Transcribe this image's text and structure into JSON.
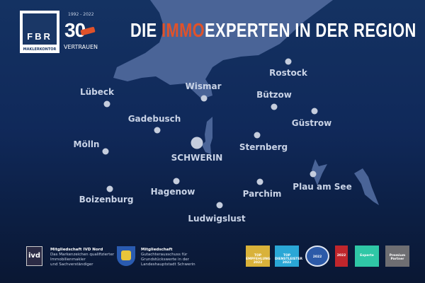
{
  "logo": {
    "letters": "FBR",
    "subtitle": "MAKLERKONTOR",
    "years": "1992 - 2022",
    "anniversary": "30",
    "anniversary_badge": "Jahre",
    "tagline": "VERTRAUEN"
  },
  "headline": {
    "part1": "DIE ",
    "highlight": "IMMO",
    "part2": "EXPERTEN IN DER REGION",
    "highlight_color": "#e0522a"
  },
  "cities": [
    {
      "name": "Rostock"
    },
    {
      "name": "Wismar"
    },
    {
      "name": "Lübeck"
    },
    {
      "name": "Bützow"
    },
    {
      "name": "Güstrow"
    },
    {
      "name": "Gadebusch"
    },
    {
      "name": "Sternberg"
    },
    {
      "name": "Mölln"
    },
    {
      "name": "SCHWERIN"
    },
    {
      "name": "Hagenow"
    },
    {
      "name": "Parchim"
    },
    {
      "name": "Plau am See"
    },
    {
      "name": "Boizenburg"
    },
    {
      "name": "Ludwigslust"
    }
  ],
  "footer": {
    "ivd": {
      "logo": "ivd",
      "title": "Mitgliedschaft IVD Nord",
      "lines": [
        "Das Markenzeichen qualifizierter",
        "Immobilienmakler",
        "und Sachverständiger"
      ]
    },
    "schwerin": {
      "title": "Mitgliedschaft",
      "lines": [
        "Gutachterausschuss für",
        "Grundstückswerte in der",
        "Landeshauptstadt Schwerin"
      ]
    },
    "awards": [
      {
        "label": "TOP EMPFEHLUNG 2022",
        "color": "#d9b23a"
      },
      {
        "label": "TOP DIENSTLEISTER 2022",
        "color": "#2aa7d6"
      },
      {
        "label": "2022",
        "color": "#2c5aa8"
      },
      {
        "label": "2022",
        "color": "#c0262c"
      },
      {
        "label": "Experte",
        "color": "#2fc7a6"
      },
      {
        "label": "Premium Partner",
        "color": "#6e6e72"
      }
    ]
  },
  "colors": {
    "background": "#10295a",
    "water": "#4a6497",
    "dot": "#c5cddd"
  }
}
